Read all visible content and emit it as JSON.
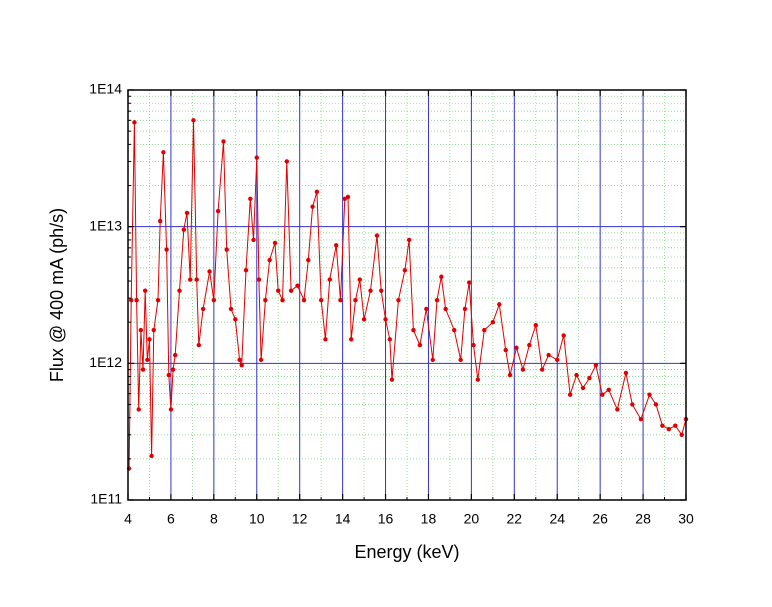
{
  "chart_data": {
    "type": "line",
    "xlabel": "Energy (keV)",
    "ylabel": "Flux @ 400 mA (ph/s)",
    "xlim": [
      4,
      30
    ],
    "xticks": [
      4,
      6,
      8,
      10,
      12,
      14,
      16,
      18,
      20,
      22,
      24,
      26,
      28,
      30
    ],
    "xminorticks": [
      5,
      7,
      9,
      11,
      13,
      15,
      17,
      19,
      21,
      23,
      25,
      27,
      29
    ],
    "ylim": [
      100000000000.0,
      100000000000000.0
    ],
    "ylog": true,
    "yticks": [
      {
        "value": 100000000000.0,
        "label": "1E11"
      },
      {
        "value": 1000000000000.0,
        "label": "1E12"
      },
      {
        "value": 10000000000000.0,
        "label": "1E13"
      },
      {
        "value": 100000000000000.0,
        "label": "1E14"
      }
    ],
    "yminorticks": [
      200000000000.0,
      300000000000.0,
      400000000000.0,
      500000000000.0,
      600000000000.0,
      700000000000.0,
      800000000000.0,
      900000000000.0,
      2000000000000.0,
      3000000000000.0,
      4000000000000.0,
      5000000000000.0,
      6000000000000.0,
      7000000000000.0,
      8000000000000.0,
      9000000000000.0,
      20000000000000.0,
      30000000000000.0,
      40000000000000.0,
      50000000000000.0,
      60000000000000.0,
      70000000000000.0,
      80000000000000.0,
      90000000000000.0
    ],
    "grid": true,
    "grid_color": "#3333cc",
    "minor_grid_color": "#7fd67f",
    "series": [
      {
        "color": "#e00000",
        "x": [
          4.05,
          4.15,
          4.3,
          4.4,
          4.5,
          4.6,
          4.7,
          4.8,
          4.9,
          5.0,
          5.1,
          5.2,
          5.4,
          5.5,
          5.65,
          5.8,
          5.9,
          6.0,
          6.1,
          6.2,
          6.4,
          6.6,
          6.75,
          6.9,
          7.05,
          7.2,
          7.3,
          7.5,
          7.8,
          8.0,
          8.2,
          8.45,
          8.6,
          8.8,
          9.0,
          9.2,
          9.3,
          9.5,
          9.7,
          9.85,
          10.0,
          10.1,
          10.2,
          10.4,
          10.6,
          10.85,
          11.0,
          11.2,
          11.4,
          11.6,
          11.9,
          12.2,
          12.4,
          12.6,
          12.8,
          13.0,
          13.2,
          13.4,
          13.7,
          13.9,
          14.1,
          14.25,
          14.4,
          14.6,
          14.8,
          15.0,
          15.3,
          15.6,
          15.8,
          16.0,
          16.2,
          16.3,
          16.6,
          16.9,
          17.1,
          17.3,
          17.6,
          17.9,
          18.2,
          18.4,
          18.6,
          18.8,
          19.2,
          19.5,
          19.7,
          19.9,
          20.1,
          20.3,
          20.6,
          21.0,
          21.3,
          21.6,
          21.8,
          22.1,
          22.4,
          22.7,
          23.0,
          23.3,
          23.6,
          24.0,
          24.3,
          24.6,
          24.9,
          25.2,
          25.5,
          25.8,
          26.1,
          26.4,
          26.8,
          27.2,
          27.5,
          27.9,
          28.3,
          28.6,
          28.9,
          29.2,
          29.5,
          29.8,
          30.0
        ],
        "values": [
          170000000000.0,
          2900000000000.0,
          58000000000000.0,
          2900000000000.0,
          460000000000.0,
          1750000000000.0,
          900000000000.0,
          3400000000000.0,
          1060000000000.0,
          1500000000000.0,
          210000000000.0,
          1750000000000.0,
          2900000000000.0,
          11000000000000.0,
          35000000000000.0,
          6800000000000.0,
          820000000000.0,
          460000000000.0,
          900000000000.0,
          1150000000000.0,
          3400000000000.0,
          9500000000000.0,
          12600000000000.0,
          4100000000000.0,
          60000000000000.0,
          4100000000000.0,
          1360000000000.0,
          2500000000000.0,
          4700000000000.0,
          2900000000000.0,
          13000000000000.0,
          42000000000000.0,
          6800000000000.0,
          2500000000000.0,
          2100000000000.0,
          1060000000000.0,
          970000000000.0,
          4800000000000.0,
          16000000000000.0,
          8000000000000.0,
          32000000000000.0,
          4100000000000.0,
          1060000000000.0,
          2900000000000.0,
          5700000000000.0,
          7600000000000.0,
          3400000000000.0,
          2900000000000.0,
          30000000000000.0,
          3400000000000.0,
          3700000000000.0,
          2900000000000.0,
          5700000000000.0,
          14000000000000.0,
          18000000000000.0,
          2900000000000.0,
          1500000000000.0,
          4100000000000.0,
          7300000000000.0,
          2900000000000.0,
          16000000000000.0,
          16500000000000.0,
          1500000000000.0,
          2900000000000.0,
          4100000000000.0,
          2100000000000.0,
          3400000000000.0,
          8600000000000.0,
          3400000000000.0,
          2100000000000.0,
          1500000000000.0,
          760000000000.0,
          2900000000000.0,
          4800000000000.0,
          8000000000000.0,
          1750000000000.0,
          1360000000000.0,
          2500000000000.0,
          1060000000000.0,
          2900000000000.0,
          4300000000000.0,
          2500000000000.0,
          1750000000000.0,
          1060000000000.0,
          2500000000000.0,
          3900000000000.0,
          1360000000000.0,
          760000000000.0,
          1750000000000.0,
          2000000000000.0,
          2700000000000.0,
          1250000000000.0,
          820000000000.0,
          1300000000000.0,
          900000000000.0,
          1360000000000.0,
          1900000000000.0,
          900000000000.0,
          1150000000000.0,
          1060000000000.0,
          1600000000000.0,
          590000000000.0,
          820000000000.0,
          660000000000.0,
          780000000000.0,
          970000000000.0,
          590000000000.0,
          640000000000.0,
          460000000000.0,
          850000000000.0,
          500000000000.0,
          390000000000.0,
          590000000000.0,
          500000000000.0,
          350000000000.0,
          330000000000.0,
          350000000000.0,
          300000000000.0,
          390000000000.0
        ]
      }
    ]
  }
}
